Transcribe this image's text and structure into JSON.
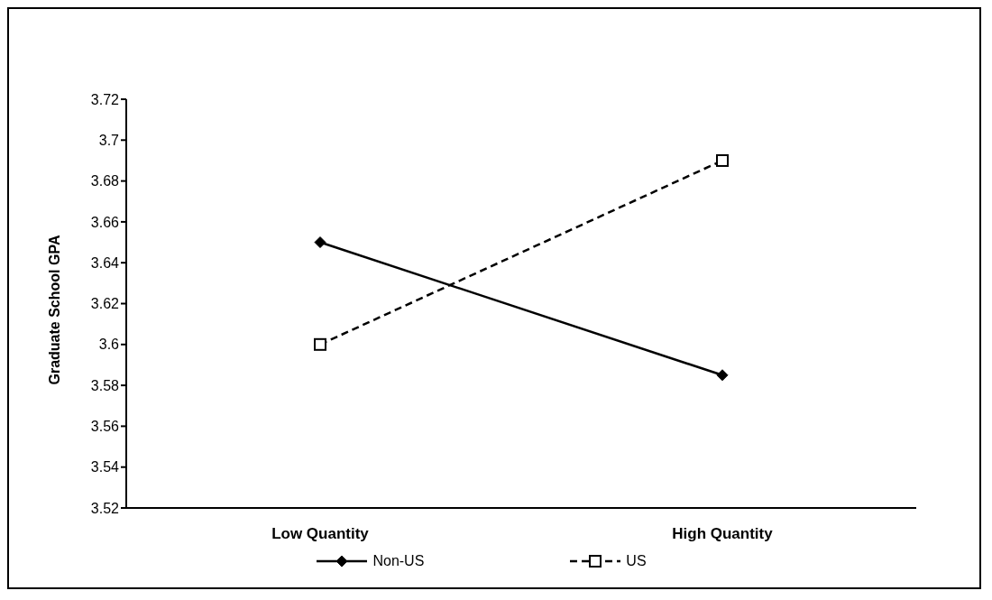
{
  "chart_data": {
    "type": "line",
    "ylabel": "Graduate School GPA",
    "categories": [
      "Low Quantity",
      "High Quantity"
    ],
    "series": [
      {
        "name": "Non-US",
        "color": "#000000",
        "values": [
          3.65,
          3.585
        ],
        "marker": "diamond",
        "line_style": "solid"
      },
      {
        "name": "US",
        "color": "#000000",
        "values": [
          3.6,
          3.69
        ],
        "marker": "square",
        "line_style": "dashed"
      }
    ],
    "ylim": [
      3.52,
      3.72
    ],
    "yticks": [
      3.52,
      3.54,
      3.56,
      3.58,
      3.6,
      3.62,
      3.64,
      3.66,
      3.68,
      3.7,
      3.72
    ],
    "grid": false,
    "legend": "bottom"
  }
}
